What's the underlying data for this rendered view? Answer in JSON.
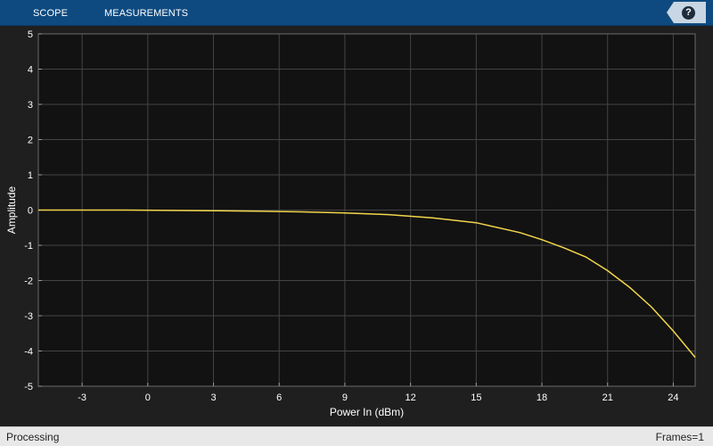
{
  "toolstrip": {
    "tabs": [
      {
        "label": "SCOPE"
      },
      {
        "label": "MEASUREMENTS"
      }
    ],
    "help_label": "?"
  },
  "colors": {
    "toolstrip": "#0e4a80",
    "plot_background": "#121212",
    "figure_background": "#1f1f1f",
    "line": "#f2d64b",
    "grid": "#444444",
    "axis_text": "#ffffff"
  },
  "chart_data": {
    "type": "line",
    "xlabel": "Power In (dBm)",
    "ylabel": "Amplitude",
    "xlim": [
      -5,
      25
    ],
    "ylim": [
      -5,
      5
    ],
    "xticks": [
      -3,
      0,
      3,
      6,
      9,
      12,
      15,
      18,
      21,
      24
    ],
    "yticks": [
      5,
      4,
      3,
      2,
      1,
      0,
      -1,
      -2,
      -3,
      -4,
      -5
    ],
    "grid": true,
    "series": [
      {
        "x": [
          -5,
          -3,
          -1,
          1,
          3,
          5,
          7,
          9,
          11,
          13,
          15,
          17,
          18,
          19,
          20,
          21,
          22,
          23,
          24,
          25
        ],
        "y": [
          0.0,
          0.0,
          0.0,
          -0.01,
          -0.02,
          -0.03,
          -0.05,
          -0.08,
          -0.13,
          -0.22,
          -0.36,
          -0.64,
          -0.84,
          -1.07,
          -1.33,
          -1.72,
          -2.19,
          -2.75,
          -3.43,
          -4.18
        ]
      }
    ]
  },
  "status": {
    "left": "Processing",
    "right": "Frames=1"
  }
}
